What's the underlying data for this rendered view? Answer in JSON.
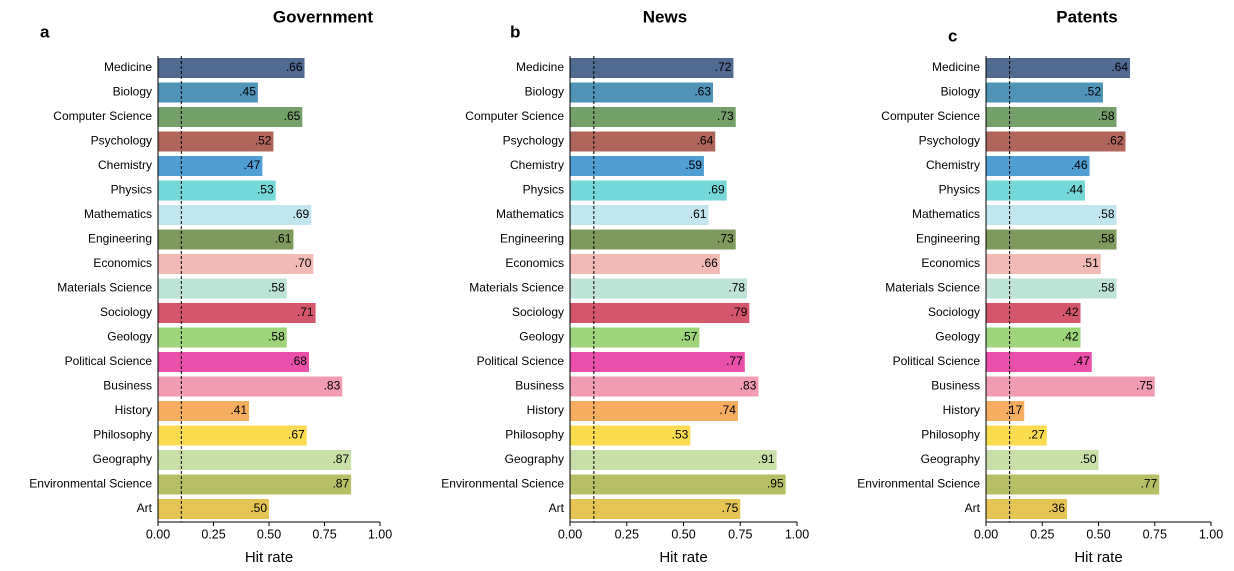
{
  "chart_data": [
    {
      "type": "bar",
      "orientation": "horizontal",
      "panel_label": "a",
      "title": "Government",
      "xlabel": "Hit rate",
      "categories": [
        "Medicine",
        "Biology",
        "Computer Science",
        "Psychology",
        "Chemistry",
        "Physics",
        "Mathematics",
        "Engineering",
        "Economics",
        "Materials Science",
        "Sociology",
        "Geology",
        "Political Science",
        "Business",
        "History",
        "Philosophy",
        "Geography",
        "Environmental Science",
        "Art"
      ],
      "values": [
        0.66,
        0.45,
        0.65,
        0.52,
        0.47,
        0.53,
        0.69,
        0.61,
        0.7,
        0.58,
        0.71,
        0.58,
        0.68,
        0.83,
        0.41,
        0.67,
        0.87,
        0.87,
        0.5
      ],
      "value_labels": [
        ".66",
        ".45",
        ".65",
        ".52",
        ".47",
        ".53",
        ".69",
        ".61",
        ".70",
        ".58",
        ".71",
        ".58",
        ".68",
        ".83",
        ".41",
        ".67",
        ".87",
        ".87",
        ".50"
      ],
      "colors": [
        "#506a92",
        "#4f93b8",
        "#74a06a",
        "#b0655a",
        "#4f9fd4",
        "#76d7d9",
        "#c2e6ef",
        "#7f9a5e",
        "#f2bab4",
        "#bde3d7",
        "#d4566a",
        "#9ed47a",
        "#ea4fa9",
        "#f29cb4",
        "#f7ad60",
        "#fbdb4f",
        "#c8e0a8",
        "#b7bf65",
        "#e5c454"
      ],
      "xlim": [
        0,
        1
      ],
      "xticks": [
        {
          "value": 0,
          "label": "0.00"
        },
        {
          "value": 0.25,
          "label": "0.25"
        },
        {
          "value": 0.5,
          "label": "0.50"
        },
        {
          "value": 0.75,
          "label": "0.75"
        },
        {
          "value": 1,
          "label": "1.00"
        }
      ],
      "reference_line": 0.105
    },
    {
      "type": "bar",
      "orientation": "horizontal",
      "panel_label": "b",
      "title": "News",
      "xlabel": "Hit rate",
      "categories": [
        "Medicine",
        "Biology",
        "Computer Science",
        "Psychology",
        "Chemistry",
        "Physics",
        "Mathematics",
        "Engineering",
        "Economics",
        "Materials Science",
        "Sociology",
        "Geology",
        "Political Science",
        "Business",
        "History",
        "Philosophy",
        "Geography",
        "Environmental Science",
        "Art"
      ],
      "values": [
        0.72,
        0.63,
        0.73,
        0.64,
        0.59,
        0.69,
        0.61,
        0.73,
        0.66,
        0.78,
        0.79,
        0.57,
        0.77,
        0.83,
        0.74,
        0.53,
        0.91,
        0.95,
        0.75
      ],
      "value_labels": [
        ".72",
        ".63",
        ".73",
        ".64",
        ".59",
        ".69",
        ".61",
        ".73",
        ".66",
        ".78",
        ".79",
        ".57",
        ".77",
        ".83",
        ".74",
        ".53",
        ".91",
        ".95",
        ".75"
      ],
      "colors": [
        "#506a92",
        "#4f93b8",
        "#74a06a",
        "#b0655a",
        "#4f9fd4",
        "#76d7d9",
        "#c2e6ef",
        "#7f9a5e",
        "#f2bab4",
        "#bde3d7",
        "#d4566a",
        "#9ed47a",
        "#ea4fa9",
        "#f29cb4",
        "#f7ad60",
        "#fbdb4f",
        "#c8e0a8",
        "#b7bf65",
        "#e5c454"
      ],
      "xlim": [
        0,
        1
      ],
      "xticks": [
        {
          "value": 0,
          "label": "0.00"
        },
        {
          "value": 0.25,
          "label": "0.25"
        },
        {
          "value": 0.5,
          "label": "0.50"
        },
        {
          "value": 0.75,
          "label": "0.75"
        },
        {
          "value": 1,
          "label": "1.00"
        }
      ],
      "reference_line": 0.105
    },
    {
      "type": "bar",
      "orientation": "horizontal",
      "panel_label": "c",
      "title": "Patents",
      "xlabel": "Hit rate",
      "categories": [
        "Medicine",
        "Biology",
        "Computer Science",
        "Psychology",
        "Chemistry",
        "Physics",
        "Mathematics",
        "Engineering",
        "Economics",
        "Materials Science",
        "Sociology",
        "Geology",
        "Political Science",
        "Business",
        "History",
        "Philosophy",
        "Geography",
        "Environmental Science",
        "Art"
      ],
      "values": [
        0.64,
        0.52,
        0.58,
        0.62,
        0.46,
        0.44,
        0.58,
        0.58,
        0.51,
        0.58,
        0.42,
        0.42,
        0.47,
        0.75,
        0.17,
        0.27,
        0.5,
        0.77,
        0.36
      ],
      "value_labels": [
        ".64",
        ".52",
        ".58",
        ".62",
        ".46",
        ".44",
        ".58",
        ".58",
        ".51",
        ".58",
        ".42",
        ".42",
        ".47",
        ".75",
        ".17",
        ".27",
        ".50",
        ".77",
        ".36"
      ],
      "colors": [
        "#506a92",
        "#4f93b8",
        "#74a06a",
        "#b0655a",
        "#4f9fd4",
        "#76d7d9",
        "#c2e6ef",
        "#7f9a5e",
        "#f2bab4",
        "#bde3d7",
        "#d4566a",
        "#9ed47a",
        "#ea4fa9",
        "#f29cb4",
        "#f7ad60",
        "#fbdb4f",
        "#c8e0a8",
        "#b7bf65",
        "#e5c454"
      ],
      "xlim": [
        0,
        1
      ],
      "xticks": [
        {
          "value": 0,
          "label": "0.00"
        },
        {
          "value": 0.25,
          "label": "0.25"
        },
        {
          "value": 0.5,
          "label": "0.50"
        },
        {
          "value": 0.75,
          "label": "0.75"
        },
        {
          "value": 1,
          "label": "1.00"
        }
      ],
      "reference_line": 0.105
    }
  ]
}
